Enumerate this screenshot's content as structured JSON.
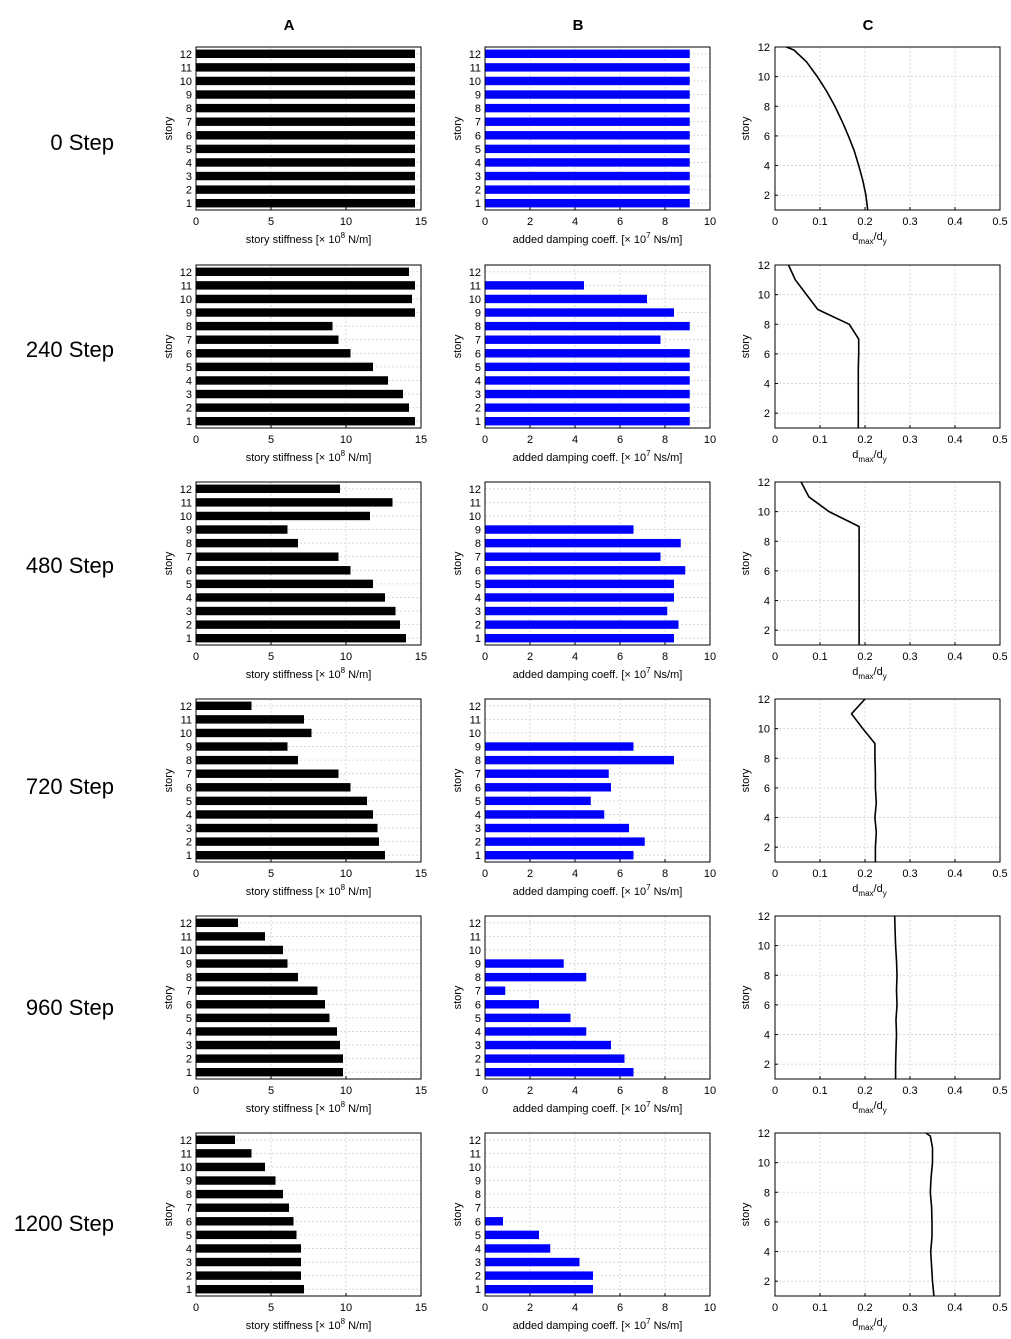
{
  "columns": [
    {
      "key": "A",
      "label": "A"
    },
    {
      "key": "B",
      "label": "B"
    },
    {
      "key": "C",
      "label": "C"
    }
  ],
  "rows": [
    {
      "label": "0 Step"
    },
    {
      "label": "240 Step"
    },
    {
      "label": "480 Step"
    },
    {
      "label": "720 Step"
    },
    {
      "label": "960 Step"
    },
    {
      "label": "1200 Step"
    }
  ],
  "colors": {
    "stiffness_bar": "#000000",
    "damping_bar": "#0000ff",
    "profile_line": "#000000",
    "grid": "#d3d3d3"
  },
  "chart_data": [
    {
      "panel": "A",
      "step": "0 Step",
      "type": "bar",
      "orientation": "horizontal",
      "ylabel": "story",
      "xlabel": "story stiffness [× 10⁸ N/m]",
      "xlim": [
        0,
        15
      ],
      "xticks": [
        0,
        5,
        10,
        15
      ],
      "grid": true,
      "categories": [
        1,
        2,
        3,
        4,
        5,
        6,
        7,
        8,
        9,
        10,
        11,
        12
      ],
      "values": [
        14.6,
        14.6,
        14.6,
        14.6,
        14.6,
        14.6,
        14.6,
        14.6,
        14.6,
        14.6,
        14.6,
        14.6
      ]
    },
    {
      "panel": "B",
      "step": "0 Step",
      "type": "bar",
      "orientation": "horizontal",
      "ylabel": "story",
      "xlabel": "added damping coeff. [× 10⁷ Ns/m]",
      "xlim": [
        0,
        10
      ],
      "xticks": [
        0,
        2,
        4,
        6,
        8,
        10
      ],
      "grid": true,
      "categories": [
        1,
        2,
        3,
        4,
        5,
        6,
        7,
        8,
        9,
        10,
        11,
        12
      ],
      "values": [
        9.1,
        9.1,
        9.1,
        9.1,
        9.1,
        9.1,
        9.1,
        9.1,
        9.1,
        9.1,
        9.1,
        9.1
      ]
    },
    {
      "panel": "C",
      "step": "0 Step",
      "type": "line",
      "ylabel": "story",
      "xlabel": "dmax/dy",
      "xlim": [
        0,
        0.5
      ],
      "ylim": [
        1,
        12
      ],
      "xticks": [
        0,
        0.1,
        0.2,
        0.3,
        0.4,
        0.5
      ],
      "yticks": [
        2,
        4,
        6,
        8,
        10,
        12
      ],
      "grid": true,
      "x": [
        0.206,
        0.202,
        0.195,
        0.186,
        0.176,
        0.163,
        0.149,
        0.133,
        0.115,
        0.094,
        0.07,
        0.042,
        0.025
      ],
      "y": [
        1,
        2,
        3,
        4,
        5,
        6,
        7,
        8,
        9,
        10,
        11,
        11.8,
        12
      ]
    },
    {
      "panel": "A",
      "step": "240 Step",
      "type": "bar",
      "orientation": "horizontal",
      "ylabel": "story",
      "xlabel": "story stiffness [× 10⁸ N/m]",
      "xlim": [
        0,
        15
      ],
      "xticks": [
        0,
        5,
        10,
        15
      ],
      "grid": true,
      "categories": [
        1,
        2,
        3,
        4,
        5,
        6,
        7,
        8,
        9,
        10,
        11,
        12
      ],
      "values": [
        14.6,
        14.2,
        13.8,
        12.8,
        11.8,
        10.3,
        9.5,
        9.1,
        14.6,
        14.4,
        14.6,
        14.2
      ]
    },
    {
      "panel": "B",
      "step": "240 Step",
      "type": "bar",
      "orientation": "horizontal",
      "ylabel": "story",
      "xlabel": "added damping coeff. [× 10⁷ Ns/m]",
      "xlim": [
        0,
        10
      ],
      "xticks": [
        0,
        2,
        4,
        6,
        8,
        10
      ],
      "grid": true,
      "categories": [
        1,
        2,
        3,
        4,
        5,
        6,
        7,
        8,
        9,
        10,
        11,
        12
      ],
      "values": [
        9.1,
        9.1,
        9.1,
        9.1,
        9.1,
        9.1,
        7.8,
        9.1,
        8.4,
        7.2,
        4.4,
        0
      ]
    },
    {
      "panel": "C",
      "step": "240 Step",
      "type": "line",
      "ylabel": "story",
      "xlabel": "dmax/dy",
      "xlim": [
        0,
        0.5
      ],
      "ylim": [
        1,
        12
      ],
      "xticks": [
        0,
        0.1,
        0.2,
        0.3,
        0.4,
        0.5
      ],
      "yticks": [
        2,
        4,
        6,
        8,
        10,
        12
      ],
      "grid": true,
      "x": [
        0.185,
        0.185,
        0.185,
        0.185,
        0.185,
        0.186,
        0.186,
        0.165,
        0.095,
        0.07,
        0.045,
        0.03
      ],
      "y": [
        1,
        2,
        3,
        4,
        5,
        6,
        7,
        8,
        9,
        10,
        11,
        12
      ]
    },
    {
      "panel": "A",
      "step": "480 Step",
      "type": "bar",
      "orientation": "horizontal",
      "ylabel": "story",
      "xlabel": "story stiffness [× 10⁸ N/m]",
      "xlim": [
        0,
        15
      ],
      "xticks": [
        0,
        5,
        10,
        15
      ],
      "grid": true,
      "categories": [
        1,
        2,
        3,
        4,
        5,
        6,
        7,
        8,
        9,
        10,
        11,
        12
      ],
      "values": [
        14.0,
        13.6,
        13.3,
        12.6,
        11.8,
        10.3,
        9.5,
        6.8,
        6.1,
        11.6,
        13.1,
        9.6
      ]
    },
    {
      "panel": "B",
      "step": "480 Step",
      "type": "bar",
      "orientation": "horizontal",
      "ylabel": "story",
      "xlabel": "added damping coeff. [× 10⁷ Ns/m]",
      "xlim": [
        0,
        10
      ],
      "xticks": [
        0,
        2,
        4,
        6,
        8,
        10
      ],
      "grid": true,
      "categories": [
        1,
        2,
        3,
        4,
        5,
        6,
        7,
        8,
        9,
        10,
        11,
        12
      ],
      "values": [
        8.4,
        8.6,
        8.1,
        8.4,
        8.4,
        8.9,
        7.8,
        8.7,
        6.6,
        0,
        0,
        0
      ]
    },
    {
      "panel": "C",
      "step": "480 Step",
      "type": "line",
      "ylabel": "story",
      "xlabel": "dmax/dy",
      "xlim": [
        0,
        0.5
      ],
      "ylim": [
        1,
        12
      ],
      "xticks": [
        0,
        0.1,
        0.2,
        0.3,
        0.4,
        0.5
      ],
      "yticks": [
        2,
        4,
        6,
        8,
        10,
        12
      ],
      "grid": true,
      "x": [
        0.187,
        0.187,
        0.187,
        0.187,
        0.187,
        0.187,
        0.187,
        0.187,
        0.187,
        0.12,
        0.075,
        0.058
      ],
      "y": [
        1,
        2,
        3,
        4,
        5,
        6,
        7,
        8,
        9,
        10,
        11,
        12
      ]
    },
    {
      "panel": "A",
      "step": "720 Step",
      "type": "bar",
      "orientation": "horizontal",
      "ylabel": "story",
      "xlabel": "story stiffness [× 10⁸ N/m]",
      "xlim": [
        0,
        15
      ],
      "xticks": [
        0,
        5,
        10,
        15
      ],
      "grid": true,
      "categories": [
        1,
        2,
        3,
        4,
        5,
        6,
        7,
        8,
        9,
        10,
        11,
        12
      ],
      "values": [
        12.6,
        12.2,
        12.1,
        11.8,
        11.4,
        10.3,
        9.5,
        6.8,
        6.1,
        7.7,
        7.2,
        3.7
      ]
    },
    {
      "panel": "B",
      "step": "720 Step",
      "type": "bar",
      "orientation": "horizontal",
      "ylabel": "story",
      "xlabel": "added damping coeff. [× 10⁷ Ns/m]",
      "xlim": [
        0,
        10
      ],
      "xticks": [
        0,
        2,
        4,
        6,
        8,
        10
      ],
      "grid": true,
      "categories": [
        1,
        2,
        3,
        4,
        5,
        6,
        7,
        8,
        9,
        10,
        11,
        12
      ],
      "values": [
        6.6,
        7.1,
        6.4,
        5.3,
        4.7,
        5.6,
        5.5,
        8.4,
        6.6,
        0,
        0,
        0
      ]
    },
    {
      "panel": "C",
      "step": "720 Step",
      "type": "line",
      "ylabel": "story",
      "xlabel": "dmax/dy",
      "xlim": [
        0,
        0.5
      ],
      "ylim": [
        1,
        12
      ],
      "xticks": [
        0,
        0.1,
        0.2,
        0.3,
        0.4,
        0.5
      ],
      "yticks": [
        2,
        4,
        6,
        8,
        10,
        12
      ],
      "grid": true,
      "x": [
        0.223,
        0.223,
        0.225,
        0.222,
        0.225,
        0.223,
        0.223,
        0.222,
        0.222,
        0.195,
        0.17,
        0.2
      ],
      "y": [
        1,
        2,
        3,
        4,
        5,
        6,
        7,
        8,
        9,
        10,
        11,
        12
      ]
    },
    {
      "panel": "A",
      "step": "960 Step",
      "type": "bar",
      "orientation": "horizontal",
      "ylabel": "story",
      "xlabel": "story stiffness [× 10⁸ N/m]",
      "xlim": [
        0,
        15
      ],
      "xticks": [
        0,
        5,
        10,
        15
      ],
      "grid": true,
      "categories": [
        1,
        2,
        3,
        4,
        5,
        6,
        7,
        8,
        9,
        10,
        11,
        12
      ],
      "values": [
        9.8,
        9.8,
        9.6,
        9.4,
        8.9,
        8.6,
        8.1,
        6.8,
        6.1,
        5.8,
        4.6,
        2.8
      ]
    },
    {
      "panel": "B",
      "step": "960 Step",
      "type": "bar",
      "orientation": "horizontal",
      "ylabel": "story",
      "xlabel": "added damping coeff. [× 10⁷ Ns/m]",
      "xlim": [
        0,
        10
      ],
      "xticks": [
        0,
        2,
        4,
        6,
        8,
        10
      ],
      "grid": true,
      "categories": [
        1,
        2,
        3,
        4,
        5,
        6,
        7,
        8,
        9,
        10,
        11,
        12
      ],
      "values": [
        6.6,
        6.2,
        5.6,
        4.5,
        3.8,
        2.4,
        0.9,
        4.5,
        3.5,
        0,
        0,
        0
      ]
    },
    {
      "panel": "C",
      "step": "960 Step",
      "type": "line",
      "ylabel": "story",
      "xlabel": "dmax/dy",
      "xlim": [
        0,
        0.5
      ],
      "ylim": [
        1,
        12
      ],
      "xticks": [
        0,
        0.1,
        0.2,
        0.3,
        0.4,
        0.5
      ],
      "yticks": [
        2,
        4,
        6,
        8,
        10,
        12
      ],
      "grid": true,
      "x": [
        0.268,
        0.268,
        0.269,
        0.27,
        0.269,
        0.271,
        0.27,
        0.271,
        0.27,
        0.268,
        0.267,
        0.266
      ],
      "y": [
        1,
        2,
        3,
        4,
        5,
        6,
        7,
        8,
        9,
        10,
        11,
        12
      ]
    },
    {
      "panel": "A",
      "step": "1200 Step",
      "type": "bar",
      "orientation": "horizontal",
      "ylabel": "story",
      "xlabel": "story stiffness [× 10⁸ N/m]",
      "xlim": [
        0,
        15
      ],
      "xticks": [
        0,
        5,
        10,
        15
      ],
      "grid": true,
      "categories": [
        1,
        2,
        3,
        4,
        5,
        6,
        7,
        8,
        9,
        10,
        11,
        12
      ],
      "values": [
        7.2,
        7.0,
        7.0,
        7.0,
        6.7,
        6.5,
        6.2,
        5.8,
        5.3,
        4.6,
        3.7,
        2.6
      ]
    },
    {
      "panel": "B",
      "step": "1200 Step",
      "type": "bar",
      "orientation": "horizontal",
      "ylabel": "story",
      "xlabel": "added damping coeff. [× 10⁷ Ns/m]",
      "xlim": [
        0,
        10
      ],
      "xticks": [
        0,
        2,
        4,
        6,
        8,
        10
      ],
      "grid": true,
      "categories": [
        1,
        2,
        3,
        4,
        5,
        6,
        7,
        8,
        9,
        10,
        11,
        12
      ],
      "values": [
        4.8,
        4.8,
        4.2,
        2.9,
        2.4,
        0.8,
        0,
        0,
        0,
        0,
        0,
        0
      ]
    },
    {
      "panel": "C",
      "step": "1200 Step",
      "type": "line",
      "ylabel": "story",
      "xlabel": "dmax/dy",
      "xlim": [
        0,
        0.5
      ],
      "ylim": [
        1,
        12
      ],
      "xticks": [
        0,
        0.1,
        0.2,
        0.3,
        0.4,
        0.5
      ],
      "yticks": [
        2,
        4,
        6,
        8,
        10,
        12
      ],
      "grid": true,
      "x": [
        0.353,
        0.35,
        0.348,
        0.346,
        0.349,
        0.349,
        0.348,
        0.345,
        0.347,
        0.35,
        0.35,
        0.345,
        0.335
      ],
      "y": [
        1,
        2,
        3,
        4,
        5,
        6,
        7,
        8,
        9,
        10,
        11,
        11.8,
        12
      ]
    }
  ]
}
